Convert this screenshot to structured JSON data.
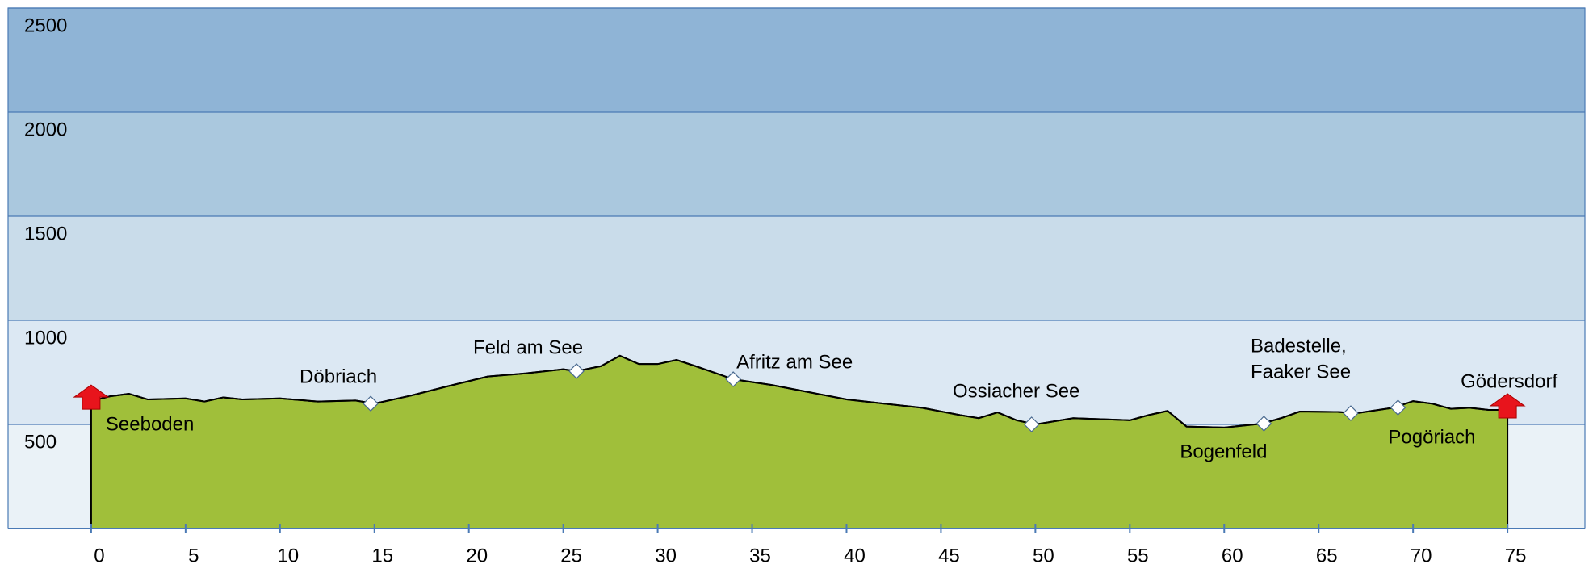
{
  "chart_data": {
    "type": "area",
    "x": [
      0,
      1,
      2,
      3,
      5,
      6,
      7,
      8,
      10,
      12,
      14,
      15,
      17,
      19,
      21,
      23,
      25,
      25.7,
      27,
      28,
      29,
      30,
      31,
      32,
      34,
      36,
      38,
      40,
      42,
      44,
      46,
      47,
      48,
      49,
      50,
      52,
      55,
      56,
      57,
      58,
      60,
      62,
      63,
      64,
      66,
      67,
      69,
      70,
      71,
      72,
      73,
      74,
      75
    ],
    "values": [
      612,
      635,
      647,
      620,
      625,
      610,
      630,
      620,
      625,
      610,
      615,
      600,
      640,
      686,
      730,
      745,
      765,
      756,
      780,
      830,
      790,
      790,
      810,
      780,
      717,
      690,
      655,
      620,
      600,
      580,
      545,
      530,
      558,
      520,
      500,
      530,
      520,
      545,
      565,
      490,
      485,
      504,
      530,
      562,
      560,
      554,
      581,
      612,
      600,
      575,
      580,
      570,
      570
    ],
    "color": "#a0bf3a",
    "line_color": "#000000",
    "xlim": [
      -4.4,
      79.1
    ],
    "ylim": [
      0,
      2500
    ],
    "xticks": [
      0,
      5,
      10,
      15,
      20,
      25,
      30,
      35,
      40,
      45,
      50,
      55,
      60,
      65,
      70,
      75
    ],
    "yticks": [
      500,
      1000,
      1500,
      2000,
      2500
    ],
    "band_colors": [
      "#eaf2f7",
      "#dce8f3",
      "#c9dcea",
      "#aac8de",
      "#8fb4d6"
    ],
    "grid": true,
    "endpoints": [
      {
        "label": [
          "Seeboden"
        ],
        "x": 0,
        "value": 612
      },
      {
        "label": [
          "Gödersdorf"
        ],
        "x": 75,
        "value": 570
      }
    ],
    "endpoint_color": "#e8141c",
    "waypoints": [
      {
        "label": [
          "Döbriach"
        ],
        "x": 14.8,
        "value": 600
      },
      {
        "label": [
          "Feld am See"
        ],
        "x": 25.7,
        "value": 756
      },
      {
        "label": [
          "Afritz am See"
        ],
        "x": 34,
        "value": 717
      },
      {
        "label": [
          "Ossiacher See"
        ],
        "x": 49.8,
        "value": 500
      },
      {
        "label": [
          "Bogenfeld"
        ],
        "x": 62.1,
        "value": 504
      },
      {
        "label": [
          "Badestelle,",
          "Faaker See"
        ],
        "x": 66.7,
        "value": 554
      },
      {
        "label": [
          "Pogöriach"
        ],
        "x": 69.2,
        "value": 581
      }
    ]
  }
}
